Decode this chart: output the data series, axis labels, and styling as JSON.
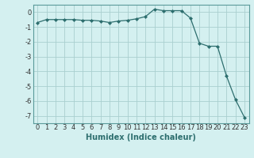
{
  "x": [
    0,
    1,
    2,
    3,
    4,
    5,
    6,
    7,
    8,
    9,
    10,
    11,
    12,
    13,
    14,
    15,
    16,
    17,
    18,
    19,
    20,
    21,
    22,
    23
  ],
  "y": [
    -0.7,
    -0.5,
    -0.5,
    -0.5,
    -0.5,
    -0.55,
    -0.55,
    -0.6,
    -0.7,
    -0.6,
    -0.55,
    -0.45,
    -0.3,
    0.2,
    0.1,
    0.1,
    0.1,
    -0.4,
    -2.1,
    -2.3,
    -2.3,
    -4.3,
    -5.9,
    -7.1
  ],
  "line_color": "#2d6e6e",
  "marker": "D",
  "marker_size": 2.0,
  "background_color": "#d4f0f0",
  "grid_color": "#aacfcf",
  "grid_color_minor": "#c2e4e4",
  "xlabel": "Humidex (Indice chaleur)",
  "xlim": [
    -0.5,
    23.5
  ],
  "ylim": [
    -7.5,
    0.5
  ],
  "yticks": [
    0,
    -1,
    -2,
    -3,
    -4,
    -5,
    -6,
    -7
  ],
  "xticks": [
    0,
    1,
    2,
    3,
    4,
    5,
    6,
    7,
    8,
    9,
    10,
    11,
    12,
    13,
    14,
    15,
    16,
    17,
    18,
    19,
    20,
    21,
    22,
    23
  ],
  "xlabel_fontsize": 7,
  "tick_fontsize": 6,
  "spine_color": "#5a9a9a"
}
